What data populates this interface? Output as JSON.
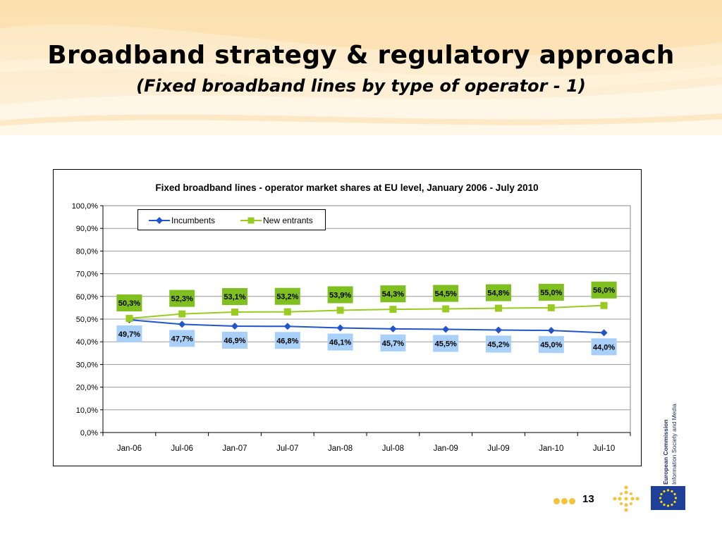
{
  "slide": {
    "title": "Broadband strategy & regulatory approach",
    "subtitle": "(Fixed broadband lines by type of operator - 1)",
    "page_number": "13",
    "org_line1": "European Commission",
    "org_line2": "Information Society and Media"
  },
  "colors": {
    "incumbents": "#2255cc",
    "new_entrants": "#99cc22",
    "incumbent_label_bg": "#a8d0f8",
    "entrant_label_bg": "#7fbf1f",
    "banner": "#fbe2b4",
    "flag": "#1f3f99"
  },
  "chart_data": {
    "type": "line",
    "title": "Fixed broadband lines - operator market shares at EU level, January 2006 - July 2010",
    "categories": [
      "Jan-06",
      "Jul-06",
      "Jan-07",
      "Jul-07",
      "Jan-08",
      "Jul-08",
      "Jan-09",
      "Jul-09",
      "Jan-10",
      "Jul-10"
    ],
    "series": [
      {
        "name": "Incumbents",
        "values": [
          49.7,
          47.7,
          46.9,
          46.8,
          46.1,
          45.7,
          45.5,
          45.2,
          45.0,
          44.0
        ],
        "labels": [
          "49,7%",
          "47,7%",
          "46,9%",
          "46,8%",
          "46,1%",
          "45,7%",
          "45,5%",
          "45,2%",
          "45,0%",
          "44,0%"
        ],
        "marker": "diamond"
      },
      {
        "name": "New entrants",
        "values": [
          50.3,
          52.3,
          53.1,
          53.2,
          53.9,
          54.3,
          54.5,
          54.8,
          55.0,
          56.0
        ],
        "labels": [
          "50,3%",
          "52,3%",
          "53,1%",
          "53,2%",
          "53,9%",
          "54,3%",
          "54,5%",
          "54,8%",
          "55,0%",
          "56,0%"
        ],
        "marker": "square"
      }
    ],
    "ylim": [
      0,
      100
    ],
    "yticks": [
      "0,0%",
      "10,0%",
      "20,0%",
      "30,0%",
      "40,0%",
      "50,0%",
      "60,0%",
      "70,0%",
      "80,0%",
      "90,0%",
      "100,0%"
    ],
    "xlabel": "",
    "ylabel": "",
    "grid": true,
    "legend": "top-left"
  }
}
